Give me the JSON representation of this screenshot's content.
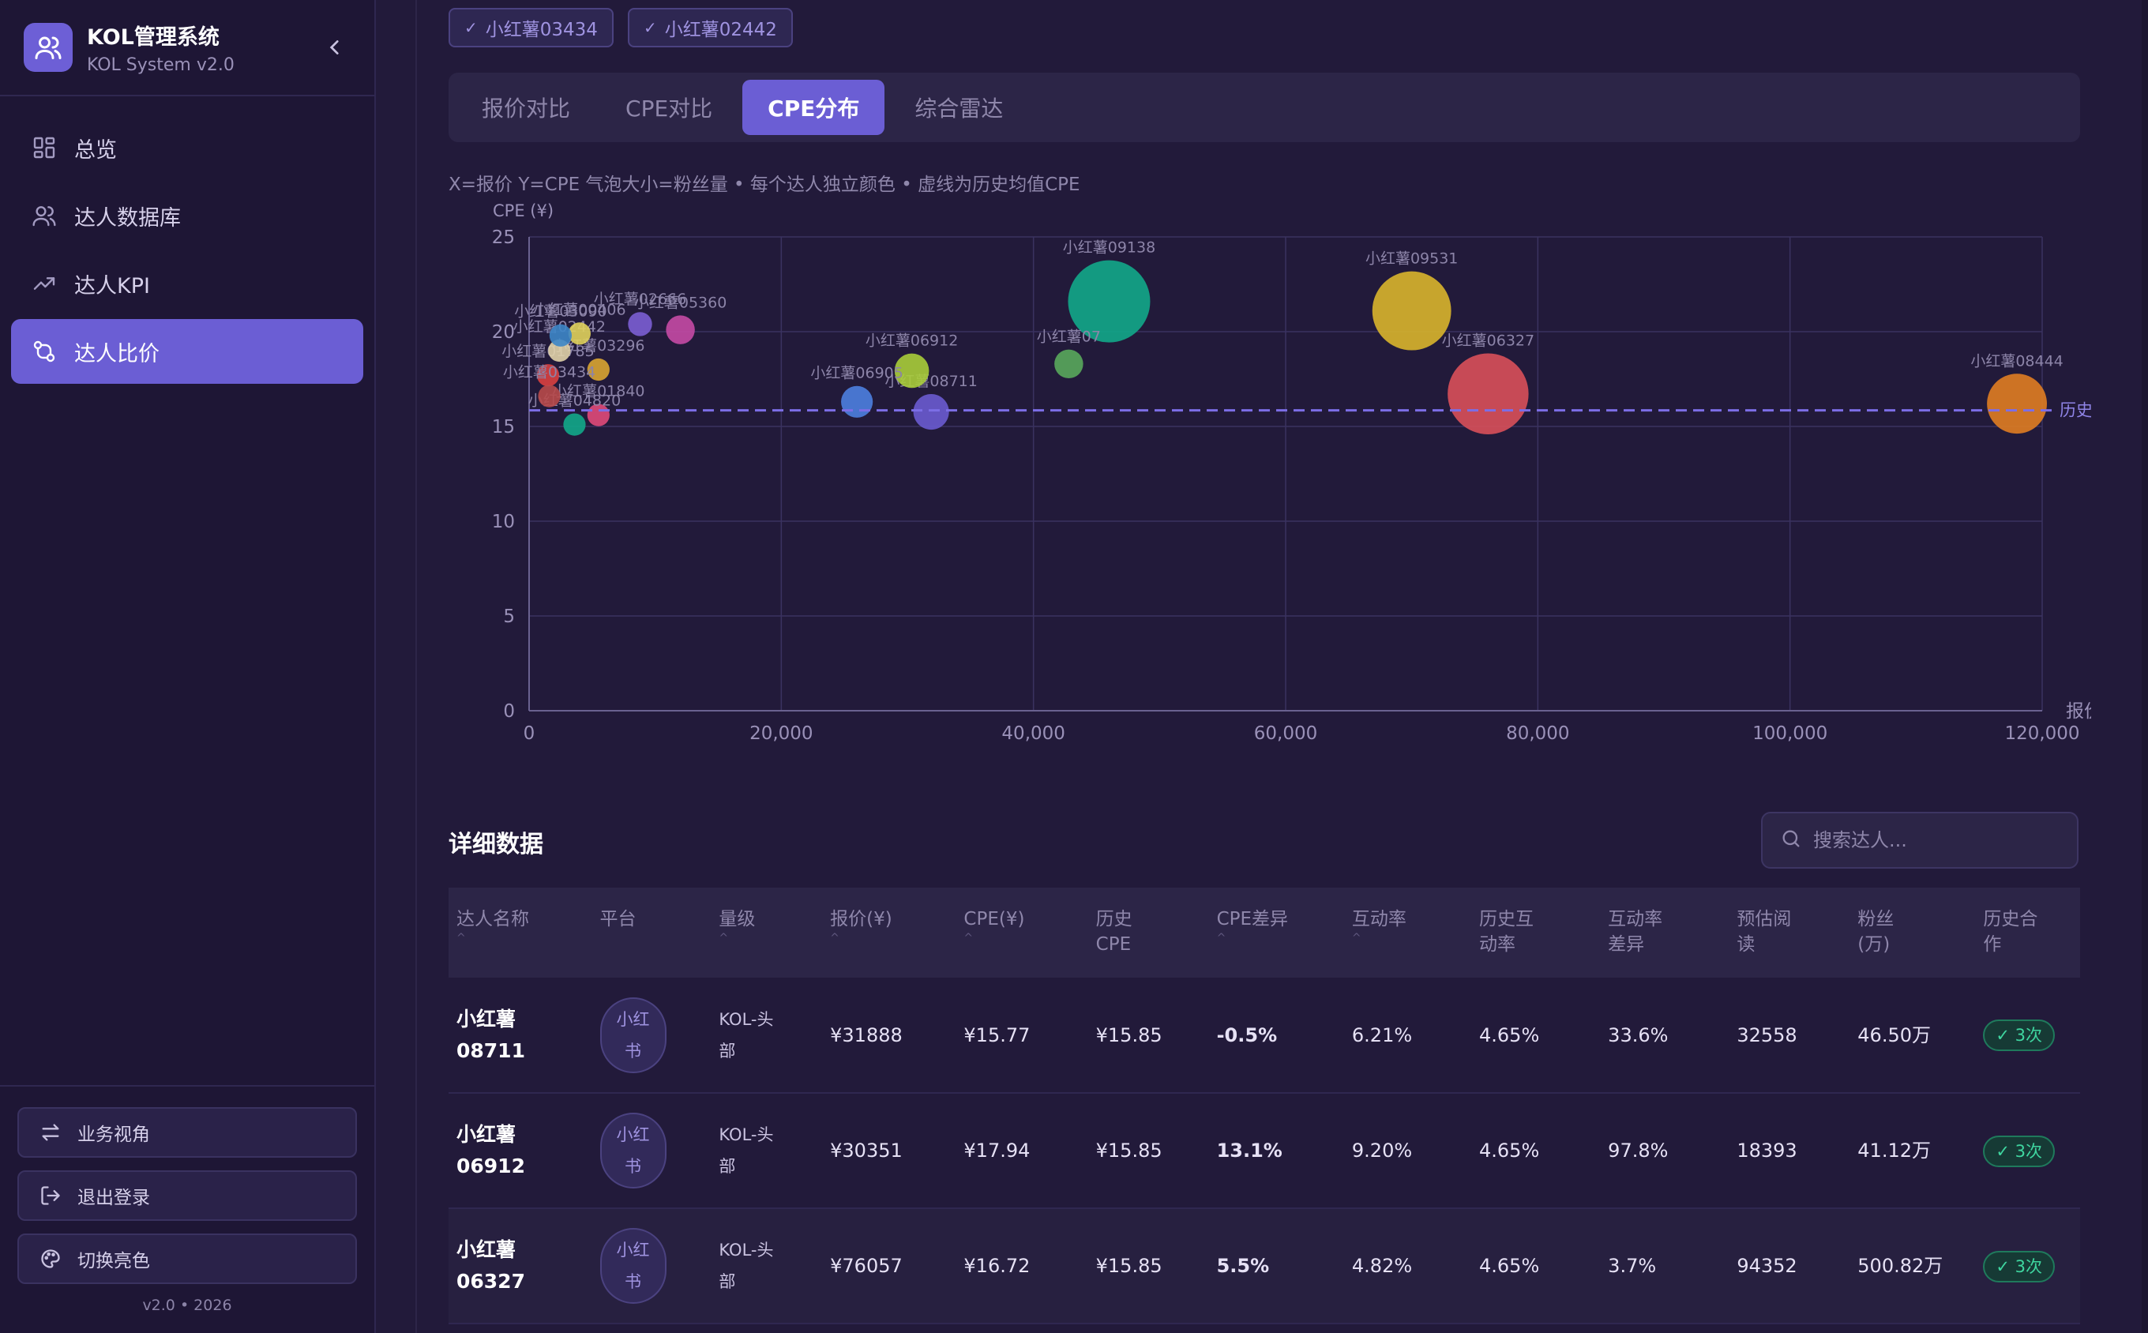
{
  "app": {
    "title": "KOL管理系统",
    "subtitle": "KOL System v2.0",
    "version": "v2.0 • 2026"
  },
  "sidebar": {
    "items": [
      {
        "label": "总览",
        "icon": "dashboard-icon",
        "active": false
      },
      {
        "label": "达人数据库",
        "icon": "users-icon",
        "active": false
      },
      {
        "label": "达人KPI",
        "icon": "trend-icon",
        "active": false
      },
      {
        "label": "达人比价",
        "icon": "compare-icon",
        "active": true
      }
    ],
    "bottom": {
      "business_view": "业务视角",
      "logout": "退出登录",
      "toggle_theme": "切换亮色"
    }
  },
  "selected_chips": [
    "小红薯03434",
    "小红薯02442"
  ],
  "tabs": [
    {
      "label": "报价对比",
      "active": false
    },
    {
      "label": "CPE对比",
      "active": false
    },
    {
      "label": "CPE分布",
      "active": true
    },
    {
      "label": "综合雷达",
      "active": false
    }
  ],
  "chart_note": "X=报价 Y=CPE 气泡大小=粉丝量 • 每个达人独立颜色 • 虚线为历史均值CPE",
  "chart_data": {
    "type": "scatter",
    "xlabel": "报价",
    "ylabel": "CPE (¥)",
    "xlim": [
      0,
      120000
    ],
    "ylim": [
      0,
      25
    ],
    "xticks": [
      "0",
      "20,000",
      "40,000",
      "60,000",
      "80,000",
      "100,000",
      "120,000"
    ],
    "yticks": [
      "0",
      "5",
      "10",
      "15",
      "20",
      "25"
    ],
    "reference_line": {
      "value": 15.85,
      "label": "历史均值CPE"
    },
    "grid": true,
    "points": [
      {
        "name": "小红薯09138",
        "x": 46000,
        "y": 21.6,
        "fans": 520,
        "color": "#12a88a"
      },
      {
        "name": "小红薯09531",
        "x": 70000,
        "y": 21.1,
        "fans": 470,
        "color": "#d9b52c"
      },
      {
        "name": "小红薯06327",
        "x": 76057,
        "y": 16.72,
        "fans": 500.82,
        "color": "#d9505a"
      },
      {
        "name": "小红薯08444",
        "x": 118000,
        "y": 16.2,
        "fans": 230,
        "color": "#e07d22"
      },
      {
        "name": "小红薯06912",
        "x": 30351,
        "y": 17.94,
        "fans": 41.12,
        "color": "#a8cd3a"
      },
      {
        "name": "小红薯08711",
        "x": 31888,
        "y": 15.77,
        "fans": 46.5,
        "color": "#6a5bd0"
      },
      {
        "name": "小红薯06905",
        "x": 26000,
        "y": 16.3,
        "fans": 30,
        "color": "#4d7fe0"
      },
      {
        "name": "小红薯07",
        "x": 42800,
        "y": 18.3,
        "fans": 20,
        "color": "#59a85c"
      },
      {
        "name": "小红薯05360",
        "x": 12000,
        "y": 20.1,
        "fans": 20,
        "color": "#c54aa5"
      },
      {
        "name": "小红薯02666",
        "x": 8800,
        "y": 20.4,
        "fans": 8,
        "color": "#7b5ed4"
      },
      {
        "name": "小红薯03296",
        "x": 5500,
        "y": 18.0,
        "fans": 5,
        "color": "#d9a532"
      },
      {
        "name": "小红薯01840",
        "x": 5500,
        "y": 15.6,
        "fans": 5,
        "color": "#e04a7a"
      },
      {
        "name": "小红薯04820",
        "x": 3600,
        "y": 15.1,
        "fans": 5,
        "color": "#12a88a"
      },
      {
        "name": "小红薯01785",
        "x": 1500,
        "y": 17.7,
        "fans": 5,
        "color": "#d94040"
      },
      {
        "name": "小红薯03434",
        "x": 1600,
        "y": 16.6,
        "fans": 5,
        "color": "#b84a4a"
      },
      {
        "name": "小红薯02442",
        "x": 2400,
        "y": 19.0,
        "fans": 5,
        "color": "#e0d2a8"
      },
      {
        "name": "小红薯00406",
        "x": 4000,
        "y": 19.9,
        "fans": 5,
        "color": "#e0d25c"
      },
      {
        "name": "小红薯03090",
        "x": 2500,
        "y": 19.8,
        "fans": 5,
        "color": "#3d86c8"
      }
    ]
  },
  "detail": {
    "title": "详细数据",
    "search_placeholder": "搜索达人...",
    "columns": [
      "达人名称",
      "平台",
      "量级",
      "报价(¥)",
      "CPE(¥)",
      "历史CPE",
      "CPE差异",
      "互动率",
      "历史互动率",
      "互动率差异",
      "预估阅读",
      "粉丝(万)",
      "历史合作"
    ],
    "rows": [
      {
        "name": "小红薯08711",
        "platform": "小红书",
        "tier": "KOL-头部",
        "price": "¥31888",
        "cpe": "¥15.77",
        "hist_cpe": "¥15.85",
        "cpe_diff": "-0.5%",
        "diff_sign": "neg",
        "rate": "6.21%",
        "hist_rate": "4.65%",
        "rate_diff": "33.6%",
        "reads": "32558",
        "fans": "46.50万",
        "coop": "✓ 3次"
      },
      {
        "name": "小红薯06912",
        "platform": "小红书",
        "tier": "KOL-头部",
        "price": "¥30351",
        "cpe": "¥17.94",
        "hist_cpe": "¥15.85",
        "cpe_diff": "13.1%",
        "diff_sign": "pos",
        "rate": "9.20%",
        "hist_rate": "4.65%",
        "rate_diff": "97.8%",
        "reads": "18393",
        "fans": "41.12万",
        "coop": "✓ 3次"
      },
      {
        "name": "小红薯06327",
        "platform": "小红书",
        "tier": "KOL-头部",
        "price": "¥76057",
        "cpe": "¥16.72",
        "hist_cpe": "¥15.85",
        "cpe_diff": "5.5%",
        "diff_sign": "pos",
        "rate": "4.82%",
        "hist_rate": "4.65%",
        "rate_diff": "3.7%",
        "reads": "94352",
        "fans": "500.82万",
        "coop": "✓ 3次"
      }
    ]
  }
}
